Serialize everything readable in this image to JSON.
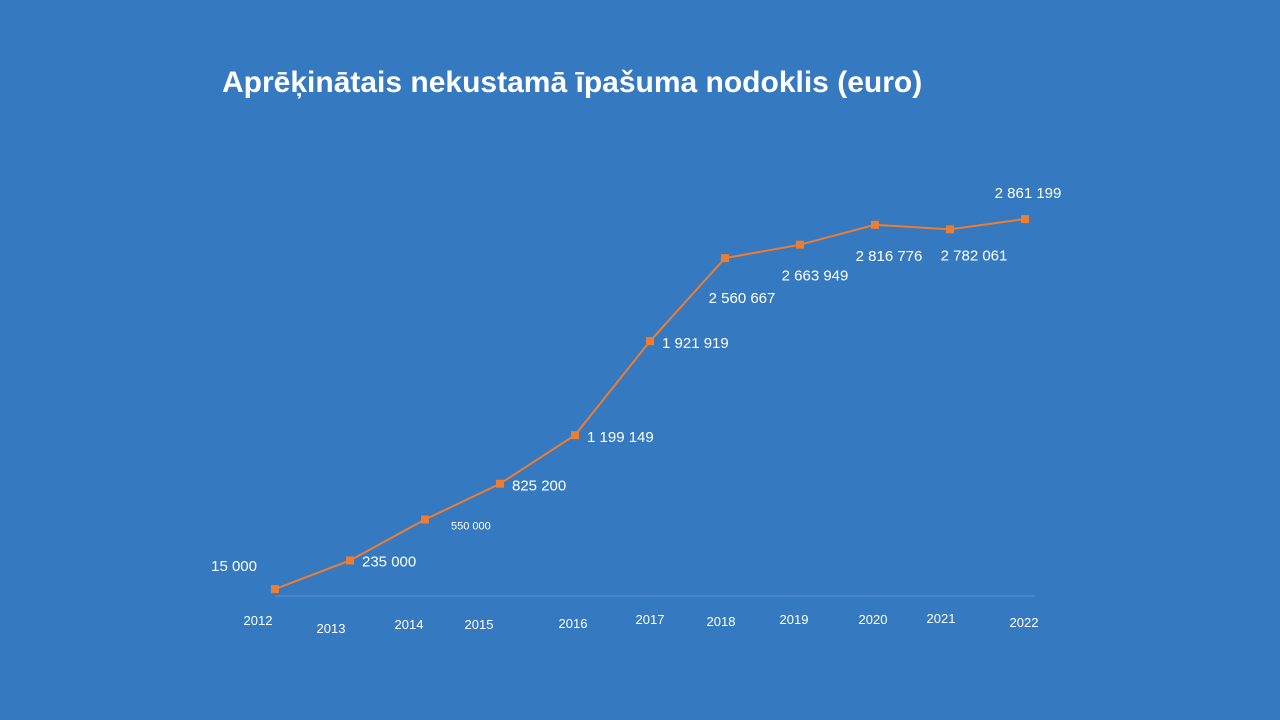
{
  "chart_data": {
    "type": "line",
    "title": "Aprēķinātais nekustamā īpašuma nodoklis (euro)",
    "xlabel": "",
    "ylabel": "",
    "categories": [
      "2012",
      "2013",
      "2014",
      "2015",
      "2016",
      "2017",
      "2018",
      "2019",
      "2020",
      "2021",
      "2022"
    ],
    "values": [
      15000,
      235000,
      550000,
      825200,
      1199149,
      1921919,
      2560667,
      2663949,
      2816776,
      2782061,
      2861199
    ],
    "data_labels": [
      "15 000",
      "235 000",
      "550 000",
      "825 200",
      "1 199 149",
      "1 921 919",
      "2 560 667",
      "2 663 949",
      "2 816 776",
      "2 782 061",
      "2 861 199"
    ],
    "ylim": [
      0,
      3000000
    ],
    "grid": false,
    "legend": "none",
    "colors": {
      "background": "#3579C0",
      "line": "#ED7D31",
      "axis": "#5A8FD0",
      "text": "#FFFFFF"
    }
  }
}
